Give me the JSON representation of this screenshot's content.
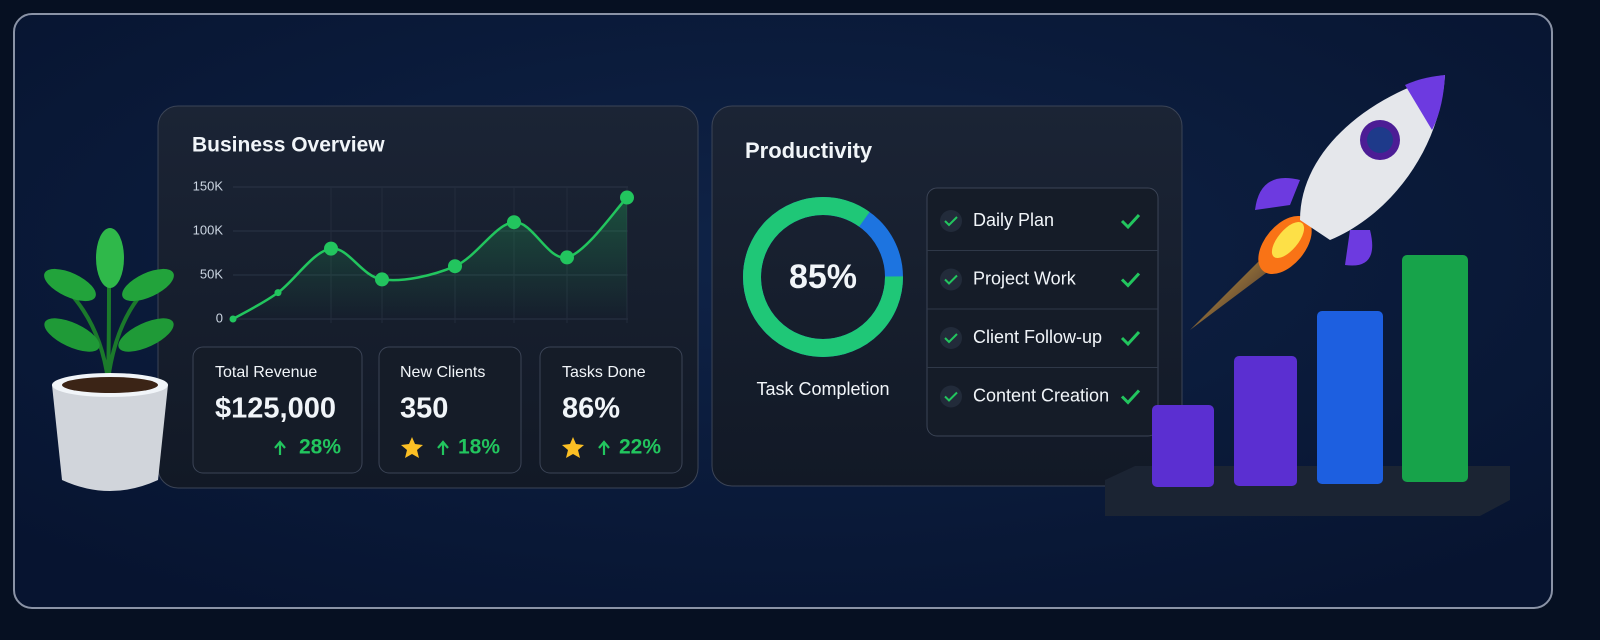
{
  "chart_data": {
    "type": "line",
    "title": "Business Overview",
    "categories": [
      null,
      null,
      null,
      null,
      null,
      null,
      null,
      null
    ],
    "values": [
      0,
      30000,
      80000,
      45000,
      60000,
      110000,
      70000,
      138000
    ],
    "color": "#22c55e",
    "ylim": [
      0,
      150000
    ],
    "yticks": [
      0,
      {
        "value": 50000,
        "label": "50K"
      },
      {
        "value": 100000,
        "label": "100K"
      },
      {
        "value": 150000,
        "label": "150K"
      }
    ],
    "grid": true
  },
  "kpis": [
    {
      "title": "Total Revenue",
      "value": "$125,000",
      "change": "28%"
    },
    {
      "title": "New Clients",
      "value": "350",
      "change": "18%"
    },
    {
      "title": "Tasks Done",
      "value": "86%",
      "change": "22%"
    }
  ],
  "productivity": {
    "title": "Productivity",
    "completion": {
      "value": 85,
      "label": "85%"
    },
    "completion_label": "Task Completion",
    "tasks": [
      "Daily Plan",
      "Project Work",
      "Client Follow-up",
      "Content Creation"
    ]
  }
}
